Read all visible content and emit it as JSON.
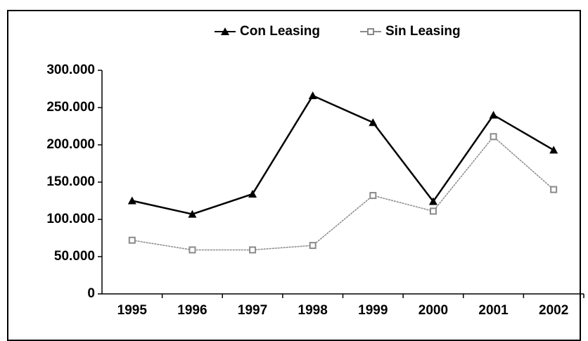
{
  "chart_data": {
    "type": "line",
    "categories": [
      "1995",
      "1996",
      "1997",
      "1998",
      "1999",
      "2000",
      "2001",
      "2002"
    ],
    "series": [
      {
        "name": "Con Leasing",
        "color": "#000000",
        "marker": "triangle",
        "values": [
          125000,
          107000,
          134000,
          266000,
          230000,
          124000,
          240000,
          193000
        ]
      },
      {
        "name": "Sin Leasing",
        "color": "#8a8a8a",
        "marker": "square",
        "values": [
          72000,
          59000,
          59000,
          65000,
          132000,
          111000,
          211000,
          140000
        ]
      }
    ],
    "ylim": [
      0,
      300000
    ],
    "yticks": [
      0,
      {
        "value": 50000,
        "label": "50.000"
      },
      {
        "value": 100000,
        "label": "100.000"
      },
      {
        "value": 150000,
        "label": "150.000"
      },
      {
        "value": 200000,
        "label": "200.000"
      },
      {
        "value": 250000,
        "label": "250.000"
      },
      {
        "value": 300000,
        "label": "300.000"
      }
    ],
    "legend": "top"
  }
}
